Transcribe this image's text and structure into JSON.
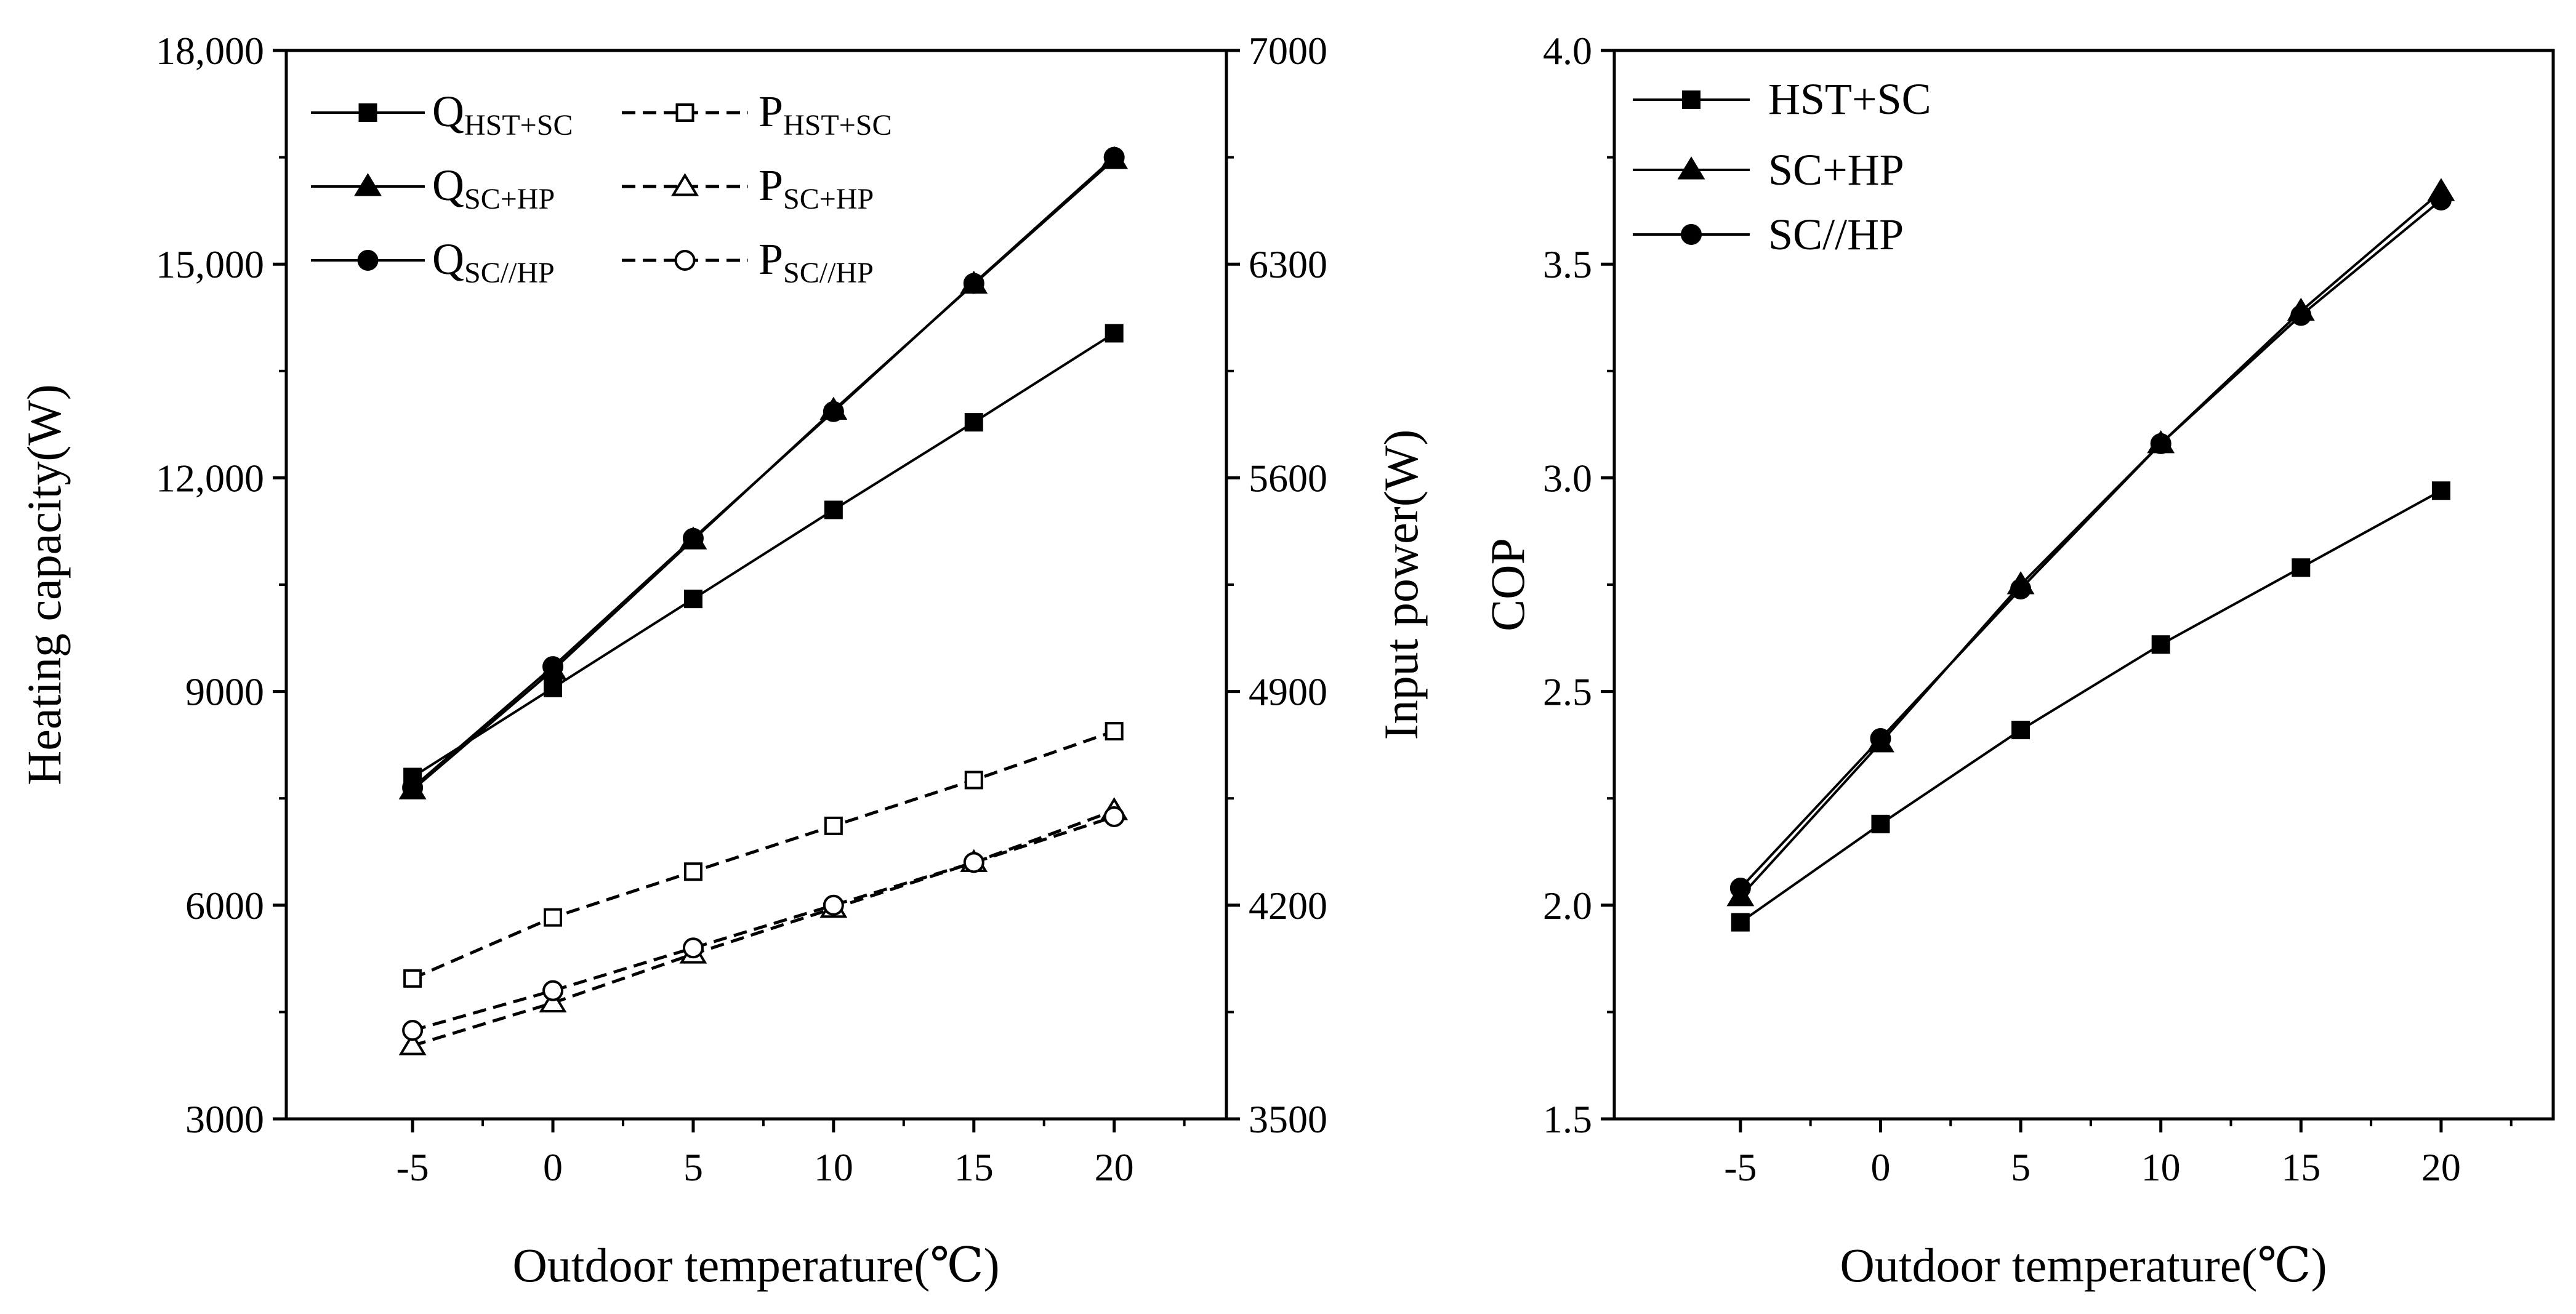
{
  "chart_data": [
    {
      "type": "line",
      "title": "",
      "xlabel": "Outdoor temperature(℃)",
      "ylabel": "Heating capacity(W)",
      "y2label": "Input power(W)",
      "x": [
        -5,
        0,
        5,
        10,
        15,
        20
      ],
      "xticks": [
        "-5",
        "0",
        "5",
        "10",
        "15",
        "20"
      ],
      "xlim": [
        -9.5,
        24
      ],
      "ylim": [
        3000,
        18000
      ],
      "yticks": [
        "3000",
        "6000",
        "9000",
        "12,000",
        "15,000",
        "18,000"
      ],
      "y2lim": [
        3500,
        7000
      ],
      "y2ticks": [
        "3500",
        "4200",
        "4900",
        "5600",
        "6300",
        "7000"
      ],
      "legend_position": "top-left",
      "series": [
        {
          "name": "Q",
          "sub": "HST+SC",
          "axis": "left",
          "dashed": false,
          "marker": "square",
          "filled": true,
          "values": [
            7800,
            9050,
            10300,
            11550,
            12780,
            14030
          ]
        },
        {
          "name": "Q",
          "sub": "SC+HP",
          "axis": "left",
          "dashed": false,
          "marker": "triangle",
          "filled": true,
          "values": [
            7620,
            9300,
            11130,
            12950,
            14720,
            16470
          ]
        },
        {
          "name": "Q",
          "sub": "SC//HP",
          "axis": "left",
          "dashed": false,
          "marker": "circle",
          "filled": true,
          "values": [
            7650,
            9350,
            11150,
            12930,
            14730,
            16500
          ]
        },
        {
          "name": "P",
          "sub": "HST+SC",
          "axis": "right",
          "dashed": true,
          "marker": "square",
          "filled": false,
          "values": [
            3960,
            4160,
            4310,
            4460,
            4610,
            4770
          ]
        },
        {
          "name": "P",
          "sub": "SC+HP",
          "axis": "right",
          "dashed": true,
          "marker": "triangle",
          "filled": false,
          "values": [
            3740,
            3880,
            4040,
            4190,
            4340,
            4510
          ]
        },
        {
          "name": "P",
          "sub": "SC//HP",
          "axis": "right",
          "dashed": true,
          "marker": "circle",
          "filled": false,
          "values": [
            3790,
            3920,
            4060,
            4200,
            4340,
            4490
          ]
        }
      ]
    },
    {
      "type": "line",
      "title": "",
      "xlabel": "Outdoor temperature(℃)",
      "ylabel": "COP",
      "x": [
        -5,
        0,
        5,
        10,
        15,
        20
      ],
      "xticks": [
        "-5",
        "0",
        "5",
        "10",
        "15",
        "20"
      ],
      "xlim": [
        -9.5,
        24
      ],
      "ylim": [
        1.5,
        4.0
      ],
      "yticks": [
        "1.5",
        "2.0",
        "2.5",
        "3.0",
        "3.5",
        "4.0"
      ],
      "legend_position": "top-left",
      "series": [
        {
          "name": "HST+SC",
          "marker": "square",
          "filled": true,
          "dashed": false,
          "values": [
            1.96,
            2.19,
            2.41,
            2.61,
            2.79,
            2.97
          ]
        },
        {
          "name": "SC+HP",
          "marker": "triangle",
          "filled": true,
          "dashed": false,
          "values": [
            2.02,
            2.38,
            2.75,
            3.08,
            3.39,
            3.67
          ]
        },
        {
          "name": "SC//HP",
          "marker": "circle",
          "filled": true,
          "dashed": false,
          "values": [
            2.04,
            2.39,
            2.74,
            3.08,
            3.38,
            3.65
          ]
        }
      ]
    }
  ]
}
